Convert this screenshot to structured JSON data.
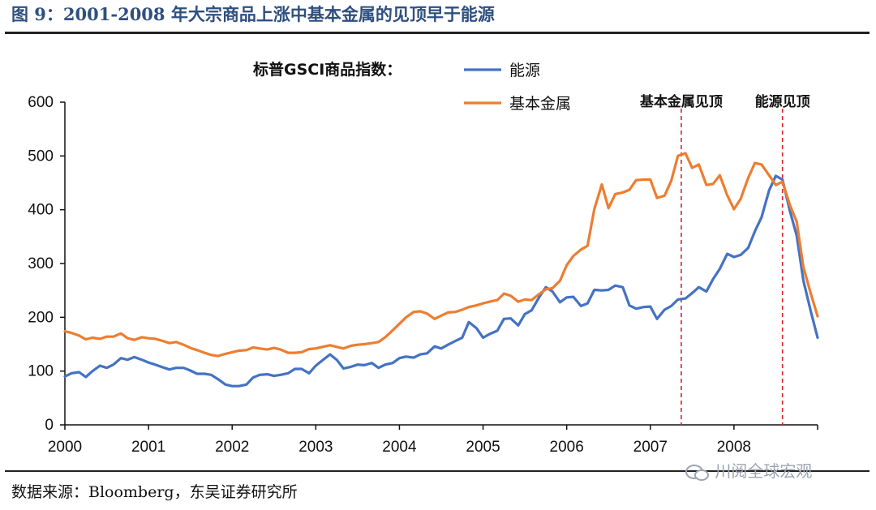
{
  "figure_title": "图 9：2001-2008 年大宗商品上涨中基本金属的见顶早于能源",
  "source_text": "数据来源：Bloomberg，东吴证券研究所",
  "watermark_text": "川阅全球宏观",
  "chart_data": {
    "type": "line",
    "legend_title": "标普GSCI商品指数：",
    "x_ticks": [
      "2000",
      "2001",
      "2002",
      "2003",
      "2004",
      "2005",
      "2006",
      "2007",
      "2008"
    ],
    "y_ticks": [
      "0",
      "100",
      "200",
      "300",
      "400",
      "500",
      "600"
    ],
    "ylim": [
      0,
      600
    ],
    "xlim": [
      2000.0,
      2009.0
    ],
    "grid": false,
    "legend_position": "top-center",
    "series": [
      {
        "name": "能源",
        "color": "#4472c4",
        "points": [
          [
            2000.0,
            90
          ],
          [
            2000.08,
            96
          ],
          [
            2000.17,
            98
          ],
          [
            2000.25,
            89
          ],
          [
            2000.33,
            100
          ],
          [
            2000.42,
            110
          ],
          [
            2000.5,
            106
          ],
          [
            2000.58,
            112
          ],
          [
            2000.67,
            124
          ],
          [
            2000.75,
            121
          ],
          [
            2000.83,
            126
          ],
          [
            2000.92,
            121
          ],
          [
            2001.0,
            116
          ],
          [
            2001.08,
            112
          ],
          [
            2001.17,
            107
          ],
          [
            2001.25,
            103
          ],
          [
            2001.33,
            106
          ],
          [
            2001.42,
            106
          ],
          [
            2001.5,
            101
          ],
          [
            2001.58,
            95
          ],
          [
            2001.67,
            95
          ],
          [
            2001.75,
            93
          ],
          [
            2001.83,
            85
          ],
          [
            2001.92,
            75
          ],
          [
            2002.0,
            72
          ],
          [
            2002.08,
            72
          ],
          [
            2002.17,
            75
          ],
          [
            2002.25,
            88
          ],
          [
            2002.33,
            93
          ],
          [
            2002.42,
            94
          ],
          [
            2002.5,
            91
          ],
          [
            2002.58,
            93
          ],
          [
            2002.67,
            96
          ],
          [
            2002.75,
            104
          ],
          [
            2002.83,
            104
          ],
          [
            2002.92,
            96
          ],
          [
            2003.0,
            110
          ],
          [
            2003.08,
            120
          ],
          [
            2003.17,
            131
          ],
          [
            2003.25,
            121
          ],
          [
            2003.33,
            105
          ],
          [
            2003.42,
            108
          ],
          [
            2003.5,
            112
          ],
          [
            2003.58,
            111
          ],
          [
            2003.67,
            115
          ],
          [
            2003.75,
            106
          ],
          [
            2003.83,
            112
          ],
          [
            2003.92,
            115
          ],
          [
            2004.0,
            124
          ],
          [
            2004.08,
            127
          ],
          [
            2004.17,
            125
          ],
          [
            2004.25,
            131
          ],
          [
            2004.33,
            133
          ],
          [
            2004.42,
            146
          ],
          [
            2004.5,
            142
          ],
          [
            2004.58,
            149
          ],
          [
            2004.67,
            156
          ],
          [
            2004.75,
            162
          ],
          [
            2004.83,
            191
          ],
          [
            2004.92,
            180
          ],
          [
            2005.0,
            162
          ],
          [
            2005.08,
            169
          ],
          [
            2005.17,
            175
          ],
          [
            2005.25,
            197
          ],
          [
            2005.33,
            198
          ],
          [
            2005.42,
            185
          ],
          [
            2005.5,
            206
          ],
          [
            2005.58,
            213
          ],
          [
            2005.67,
            237
          ],
          [
            2005.75,
            256
          ],
          [
            2005.83,
            248
          ],
          [
            2005.92,
            228
          ],
          [
            2006.0,
            237
          ],
          [
            2006.08,
            238
          ],
          [
            2006.17,
            221
          ],
          [
            2006.25,
            226
          ],
          [
            2006.33,
            251
          ],
          [
            2006.42,
            250
          ],
          [
            2006.5,
            251
          ],
          [
            2006.58,
            259
          ],
          [
            2006.67,
            256
          ],
          [
            2006.75,
            222
          ],
          [
            2006.83,
            216
          ],
          [
            2006.92,
            219
          ],
          [
            2007.0,
            220
          ],
          [
            2007.08,
            197
          ],
          [
            2007.17,
            214
          ],
          [
            2007.25,
            221
          ],
          [
            2007.33,
            233
          ],
          [
            2007.42,
            235
          ],
          [
            2007.5,
            245
          ],
          [
            2007.58,
            256
          ],
          [
            2007.67,
            248
          ],
          [
            2007.75,
            271
          ],
          [
            2007.83,
            290
          ],
          [
            2007.92,
            318
          ],
          [
            2008.0,
            312
          ],
          [
            2008.08,
            316
          ],
          [
            2008.17,
            329
          ],
          [
            2008.25,
            360
          ],
          [
            2008.33,
            386
          ],
          [
            2008.42,
            436
          ],
          [
            2008.5,
            463
          ],
          [
            2008.58,
            456
          ],
          [
            2008.67,
            397
          ],
          [
            2008.75,
            352
          ],
          [
            2008.83,
            268
          ],
          [
            2008.92,
            210
          ],
          [
            2009.0,
            162
          ]
        ]
      },
      {
        "name": "基本金属",
        "color": "#ed7d31",
        "points": [
          [
            2000.0,
            174
          ],
          [
            2000.08,
            171
          ],
          [
            2000.17,
            166
          ],
          [
            2000.25,
            159
          ],
          [
            2000.33,
            162
          ],
          [
            2000.42,
            160
          ],
          [
            2000.5,
            164
          ],
          [
            2000.58,
            164
          ],
          [
            2000.67,
            170
          ],
          [
            2000.75,
            161
          ],
          [
            2000.83,
            158
          ],
          [
            2000.92,
            163
          ],
          [
            2001.0,
            161
          ],
          [
            2001.08,
            160
          ],
          [
            2001.17,
            156
          ],
          [
            2001.25,
            152
          ],
          [
            2001.33,
            154
          ],
          [
            2001.42,
            149
          ],
          [
            2001.5,
            143
          ],
          [
            2001.58,
            139
          ],
          [
            2001.67,
            134
          ],
          [
            2001.75,
            130
          ],
          [
            2001.83,
            128
          ],
          [
            2001.92,
            132
          ],
          [
            2002.0,
            135
          ],
          [
            2002.08,
            138
          ],
          [
            2002.17,
            139
          ],
          [
            2002.25,
            144
          ],
          [
            2002.33,
            142
          ],
          [
            2002.42,
            140
          ],
          [
            2002.5,
            143
          ],
          [
            2002.58,
            140
          ],
          [
            2002.67,
            134
          ],
          [
            2002.75,
            134
          ],
          [
            2002.83,
            135
          ],
          [
            2002.92,
            141
          ],
          [
            2003.0,
            142
          ],
          [
            2003.08,
            145
          ],
          [
            2003.17,
            148
          ],
          [
            2003.25,
            145
          ],
          [
            2003.33,
            142
          ],
          [
            2003.42,
            147
          ],
          [
            2003.5,
            149
          ],
          [
            2003.58,
            150
          ],
          [
            2003.67,
            152
          ],
          [
            2003.75,
            154
          ],
          [
            2003.83,
            163
          ],
          [
            2003.92,
            176
          ],
          [
            2004.0,
            188
          ],
          [
            2004.08,
            200
          ],
          [
            2004.17,
            210
          ],
          [
            2004.25,
            211
          ],
          [
            2004.33,
            207
          ],
          [
            2004.42,
            197
          ],
          [
            2004.5,
            203
          ],
          [
            2004.58,
            209
          ],
          [
            2004.67,
            210
          ],
          [
            2004.75,
            214
          ],
          [
            2004.83,
            219
          ],
          [
            2004.92,
            222
          ],
          [
            2005.0,
            226
          ],
          [
            2005.08,
            229
          ],
          [
            2005.17,
            232
          ],
          [
            2005.25,
            244
          ],
          [
            2005.33,
            240
          ],
          [
            2005.42,
            229
          ],
          [
            2005.5,
            233
          ],
          [
            2005.58,
            232
          ],
          [
            2005.67,
            243
          ],
          [
            2005.75,
            252
          ],
          [
            2005.83,
            254
          ],
          [
            2005.92,
            268
          ],
          [
            2006.0,
            297
          ],
          [
            2006.08,
            314
          ],
          [
            2006.17,
            326
          ],
          [
            2006.25,
            333
          ],
          [
            2006.33,
            401
          ],
          [
            2006.42,
            447
          ],
          [
            2006.5,
            403
          ],
          [
            2006.58,
            429
          ],
          [
            2006.67,
            432
          ],
          [
            2006.75,
            437
          ],
          [
            2006.83,
            455
          ],
          [
            2006.92,
            456
          ],
          [
            2007.0,
            456
          ],
          [
            2007.08,
            422
          ],
          [
            2007.17,
            426
          ],
          [
            2007.25,
            454
          ],
          [
            2007.33,
            500
          ],
          [
            2007.42,
            505
          ],
          [
            2007.5,
            478
          ],
          [
            2007.58,
            484
          ],
          [
            2007.67,
            446
          ],
          [
            2007.75,
            448
          ],
          [
            2007.83,
            464
          ],
          [
            2007.92,
            427
          ],
          [
            2008.0,
            401
          ],
          [
            2008.08,
            420
          ],
          [
            2008.17,
            459
          ],
          [
            2008.25,
            487
          ],
          [
            2008.33,
            484
          ],
          [
            2008.42,
            464
          ],
          [
            2008.5,
            446
          ],
          [
            2008.58,
            452
          ],
          [
            2008.67,
            408
          ],
          [
            2008.75,
            378
          ],
          [
            2008.83,
            293
          ],
          [
            2008.92,
            243
          ],
          [
            2009.0,
            202
          ]
        ]
      }
    ],
    "annotations": [
      {
        "label": "基本金属见顶",
        "x": 2007.37,
        "line_color": "#d9262c"
      },
      {
        "label": "能源见顶",
        "x": 2008.58,
        "line_color": "#d9262c"
      }
    ]
  }
}
